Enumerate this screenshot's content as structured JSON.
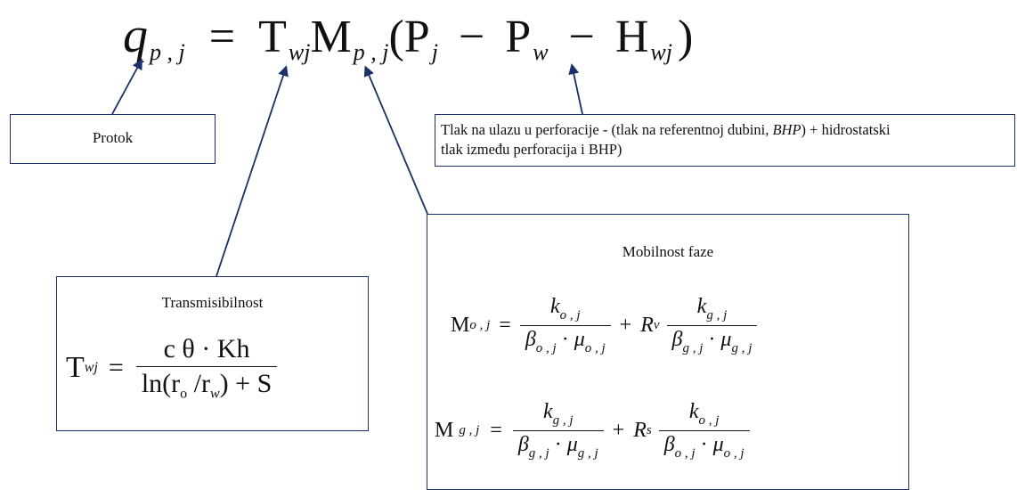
{
  "main_equation": {
    "q": "q",
    "q_sub": "p , j",
    "eq": "=",
    "T": "T",
    "T_sub": "wj",
    "M": "M",
    "M_sub": "p , j",
    "lparen": "(",
    "P1": "P",
    "P1_sub": "j",
    "minus1": "−",
    "P2": "P",
    "P2_sub": "w",
    "minus2": "−",
    "H": "H",
    "H_sub": "wj",
    "rparen": ")"
  },
  "protok_box": {
    "label": "Protok"
  },
  "tlak_box": {
    "line1_a": "Tlak na ulazu u perforacije - (tlak na referentnoj dubini, ",
    "line1_italic": "BHP",
    "line1_b": ") + hidrostatski",
    "line2": "tlak između perforacija i BHP)"
  },
  "transmisibilnost_box": {
    "title": "Transmisibilnost",
    "lhs": "T",
    "lhs_sub": "wj",
    "eq": "=",
    "numerator": "c θ · Kh",
    "denominator_a": "ln(r",
    "denominator_sub_o": "o",
    "denominator_slash": " /r",
    "denominator_sub_w": "w",
    "denominator_b": ") + S"
  },
  "mobilnost_box": {
    "title": "Mobilnost faze",
    "eq1": {
      "lhs": "M",
      "lhs_sub": "o , j",
      "eq": "=",
      "num1": "k",
      "num1_sub": "o , j",
      "den1": "β",
      "den1_sub": "o , j",
      "dot1": "·",
      "den1b": "μ",
      "den1b_sub": "o , j",
      "plus": "+",
      "coef": "R",
      "coef_sub": "v",
      "num2": "k",
      "num2_sub": "g , j",
      "den2": "β",
      "den2_sub": "g , j",
      "dot2": "·",
      "den2b": "μ",
      "den2b_sub": "g , j"
    },
    "eq2": {
      "lhs": "M",
      "lhs_sub": "g , j",
      "eq": "=",
      "num1": "k",
      "num1_sub": "g , j",
      "den1": "β",
      "den1_sub": "g , j",
      "dot1": "·",
      "den1b": "μ",
      "den1b_sub": "g , j",
      "plus": "+",
      "coef": "R",
      "coef_sub": "s",
      "num2": "k",
      "num2_sub": "o , j",
      "den2": "β",
      "den2_sub": "o , j",
      "dot2": "·",
      "den2b": "μ",
      "den2b_sub": "o , j"
    }
  },
  "colors": {
    "box_border": "#1a2f6b",
    "arrow": "#1a2f6b",
    "text": "#111111"
  }
}
